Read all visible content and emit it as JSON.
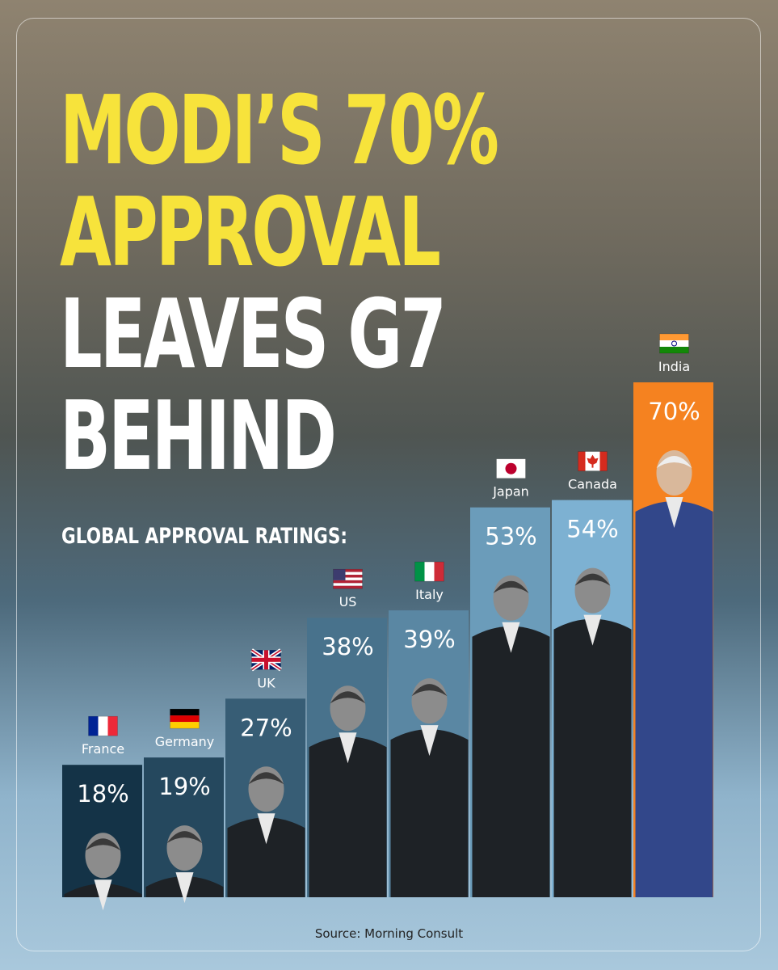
{
  "headline": {
    "line1": "MODI’S 70%",
    "line2": "APPROVAL",
    "line3": "LEAVES G7",
    "line4": "BEHIND"
  },
  "subtitle": "GLOBAL APPROVAL RATINGS:",
  "source": "Source: Morning Consult",
  "colors": {
    "accent_yellow": "#f7e33b",
    "highlight_bar": "#f58220",
    "low_bar": "#143347",
    "high_bar": "#7db1d2"
  },
  "chart_data": {
    "type": "bar",
    "title": "GLOBAL APPROVAL RATINGS:",
    "categories": [
      "France",
      "Germany",
      "UK",
      "US",
      "Italy",
      "Japan",
      "Canada",
      "India"
    ],
    "values": [
      18,
      19,
      27,
      38,
      39,
      53,
      54,
      70
    ],
    "value_labels": [
      "18%",
      "19%",
      "27%",
      "38%",
      "39%",
      "53%",
      "54%",
      "70%"
    ],
    "flags": [
      "france-flag",
      "germany-flag",
      "uk-flag",
      "us-flag",
      "italy-flag",
      "japan-flag",
      "canada-flag",
      "india-flag"
    ],
    "highlight": "India",
    "xlabel": "",
    "ylabel": "",
    "ylim": [
      0,
      70
    ],
    "grid": false,
    "legend": "none"
  }
}
